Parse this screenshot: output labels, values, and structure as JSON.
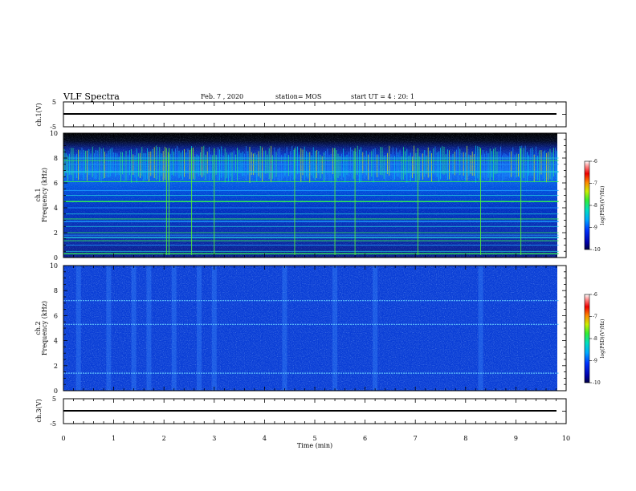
{
  "header": {
    "title": "VLF Spectra",
    "date": "Feb. 7 , 2020",
    "station": "station= MOS",
    "start": "start UT =  4 : 20: 1"
  },
  "chart_data": [
    {
      "type": "line",
      "panel": "ch1-waveform",
      "ylabel": "ch.1(V)",
      "ylim": [
        -5,
        5
      ],
      "yticks": [
        "5",
        "-5"
      ],
      "series": [
        {
          "x": [
            0,
            9.85
          ],
          "values": [
            0,
            0
          ]
        }
      ]
    },
    {
      "type": "heatmap",
      "panel": "ch1-spectrogram",
      "ylabel_top": "ch.1",
      "ylabel": "Frequency (kHz)",
      "xlim": [
        0,
        10
      ],
      "ylim": [
        0,
        10
      ],
      "yticks": [
        "0",
        "2",
        "4",
        "6",
        "8",
        "10"
      ],
      "data_xmax": 9.85,
      "data_ymax": 9.5,
      "colorbar": {
        "label": "log(PSD)(V²/Hz)",
        "ticks": [
          "-6",
          "-7",
          "-8",
          "-9",
          "-10"
        ],
        "range": [
          -10,
          -6
        ]
      },
      "features": {
        "horizontal_lines_khz": [
          0.3,
          0.5,
          1.0,
          1.35,
          1.6,
          1.8,
          2.0,
          2.5,
          2.9,
          3.1,
          3.5,
          4.0,
          4.5,
          5.0,
          5.4,
          6.1,
          6.9,
          7.5,
          7.8,
          8.0
        ],
        "vertical_lines_min": [
          2.05,
          2.1,
          2.55,
          3.0,
          4.6,
          5.4,
          5.8,
          7.05,
          8.3,
          9.1
        ],
        "sferic_band_khz": [
          6.0,
          9.0
        ]
      }
    },
    {
      "type": "heatmap",
      "panel": "ch2-spectrogram",
      "ylabel_top": "ch.2",
      "ylabel": "Frequency (kHz)",
      "xlim": [
        0,
        10
      ],
      "ylim": [
        0,
        10
      ],
      "yticks": [
        "0",
        "2",
        "4",
        "6",
        "8",
        "10"
      ],
      "data_xmax": 9.85,
      "colorbar": {
        "label": "log(PSD)(V²/Hz)",
        "ticks": [
          "-6",
          "-7",
          "-8",
          "-9",
          "-10"
        ],
        "range": [
          -10,
          -6
        ]
      },
      "features": {
        "horizontal_lines_khz": [
          1.4,
          5.3,
          7.2
        ],
        "vertical_bands_min": [
          0.3,
          0.9,
          1.4,
          1.7,
          2.2,
          2.7,
          3.0,
          4.4,
          5.4,
          6.2,
          8.3
        ]
      }
    },
    {
      "type": "line",
      "panel": "ch3-waveform",
      "ylabel": "ch.3(V)",
      "xlabel": "Time (min)",
      "xlim": [
        0,
        10
      ],
      "xticks": [
        "0",
        "1",
        "2",
        "3",
        "4",
        "5",
        "6",
        "7",
        "8",
        "9",
        "10"
      ],
      "ylim": [
        -5,
        5
      ],
      "yticks": [
        "5",
        "-5"
      ],
      "series": [
        {
          "x": [
            0,
            9.85
          ],
          "values": [
            0,
            0
          ]
        }
      ]
    }
  ]
}
